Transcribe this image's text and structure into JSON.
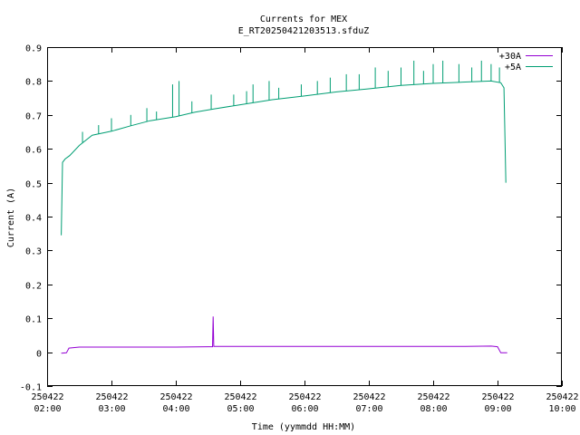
{
  "chart_data": {
    "type": "line",
    "title": "Currents for MEX",
    "subtitle": "E_RT20250421203513.sfduZ",
    "xlabel": "Time (yymmdd HH:MM)",
    "ylabel": "Current (A)",
    "ylim": [
      -0.1,
      0.9
    ],
    "y_ticks": [
      "-0.1",
      "0",
      "0.1",
      "0.2",
      "0.3",
      "0.4",
      "0.5",
      "0.6",
      "0.7",
      "0.8",
      "0.9"
    ],
    "xlim_hours": [
      2.0,
      10.0
    ],
    "x_ticks": [
      {
        "date": "250422",
        "time": "02:00"
      },
      {
        "date": "250422",
        "time": "03:00"
      },
      {
        "date": "250422",
        "time": "04:00"
      },
      {
        "date": "250422",
        "time": "05:00"
      },
      {
        "date": "250422",
        "time": "06:00"
      },
      {
        "date": "250422",
        "time": "07:00"
      },
      {
        "date": "250422",
        "time": "08:00"
      },
      {
        "date": "250422",
        "time": "09:00"
      },
      {
        "date": "250422",
        "time": "10:00"
      }
    ],
    "grid": false,
    "legend_position": "top-right",
    "series": [
      {
        "name": "+30A",
        "color": "#9400d3",
        "points": [
          [
            2.22,
            -0.003
          ],
          [
            2.3,
            -0.002
          ],
          [
            2.34,
            0.012
          ],
          [
            2.5,
            0.015
          ],
          [
            3.0,
            0.015
          ],
          [
            3.5,
            0.015
          ],
          [
            4.0,
            0.015
          ],
          [
            4.5,
            0.016
          ],
          [
            4.57,
            0.016
          ],
          [
            4.58,
            0.105
          ],
          [
            4.59,
            0.017
          ],
          [
            5.0,
            0.017
          ],
          [
            5.5,
            0.017
          ],
          [
            6.0,
            0.017
          ],
          [
            6.5,
            0.017
          ],
          [
            7.0,
            0.017
          ],
          [
            7.5,
            0.017
          ],
          [
            8.0,
            0.017
          ],
          [
            8.5,
            0.017
          ],
          [
            8.9,
            0.018
          ],
          [
            9.0,
            0.016
          ],
          [
            9.05,
            -0.002
          ],
          [
            9.15,
            -0.002
          ]
        ]
      },
      {
        "name": "+5A",
        "color": "#009e73",
        "points": [
          [
            2.22,
            0.345
          ],
          [
            2.24,
            0.56
          ],
          [
            2.28,
            0.57
          ],
          [
            2.35,
            0.58
          ],
          [
            2.5,
            0.61
          ],
          [
            2.7,
            0.64
          ],
          [
            3.0,
            0.652
          ],
          [
            3.3,
            0.668
          ],
          [
            3.6,
            0.683
          ],
          [
            4.0,
            0.695
          ],
          [
            4.3,
            0.708
          ],
          [
            4.6,
            0.718
          ],
          [
            5.0,
            0.73
          ],
          [
            5.5,
            0.745
          ],
          [
            6.0,
            0.756
          ],
          [
            6.5,
            0.768
          ],
          [
            7.0,
            0.777
          ],
          [
            7.5,
            0.787
          ],
          [
            8.0,
            0.793
          ],
          [
            8.5,
            0.797
          ],
          [
            8.9,
            0.8
          ],
          [
            9.05,
            0.795
          ],
          [
            9.1,
            0.78
          ],
          [
            9.13,
            0.5
          ]
        ],
        "spikes": [
          [
            2.55,
            0.65
          ],
          [
            2.8,
            0.67
          ],
          [
            3.0,
            0.69
          ],
          [
            3.3,
            0.7
          ],
          [
            3.55,
            0.72
          ],
          [
            3.7,
            0.71
          ],
          [
            3.95,
            0.79
          ],
          [
            4.05,
            0.8
          ],
          [
            4.25,
            0.74
          ],
          [
            4.55,
            0.76
          ],
          [
            4.9,
            0.76
          ],
          [
            5.1,
            0.77
          ],
          [
            5.2,
            0.79
          ],
          [
            5.45,
            0.8
          ],
          [
            5.6,
            0.78
          ],
          [
            5.95,
            0.79
          ],
          [
            6.2,
            0.8
          ],
          [
            6.4,
            0.81
          ],
          [
            6.65,
            0.82
          ],
          [
            6.85,
            0.82
          ],
          [
            7.1,
            0.84
          ],
          [
            7.3,
            0.83
          ],
          [
            7.5,
            0.84
          ],
          [
            7.7,
            0.86
          ],
          [
            7.85,
            0.83
          ],
          [
            8.0,
            0.85
          ],
          [
            8.15,
            0.86
          ],
          [
            8.4,
            0.85
          ],
          [
            8.6,
            0.84
          ],
          [
            8.75,
            0.86
          ],
          [
            8.9,
            0.85
          ],
          [
            9.03,
            0.84
          ]
        ]
      }
    ]
  }
}
